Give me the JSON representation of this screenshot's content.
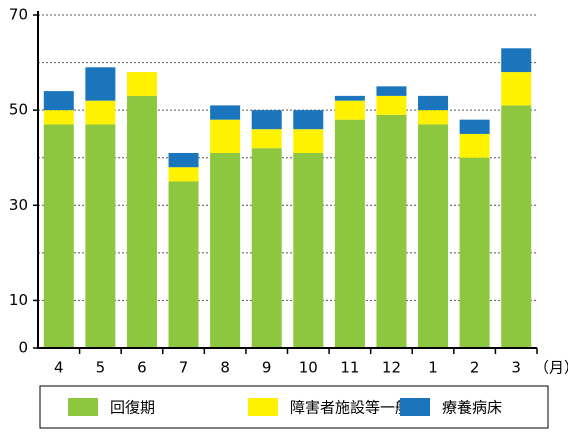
{
  "chart_data": {
    "type": "bar",
    "stacked": true,
    "categories": [
      "4",
      "5",
      "6",
      "7",
      "8",
      "9",
      "10",
      "11",
      "12",
      "1",
      "2",
      "3"
    ],
    "x_unit": "（月）",
    "series": [
      {
        "name": "回復期",
        "color": "#8dc63f",
        "values": [
          47,
          47,
          53,
          35,
          41,
          42,
          41,
          48,
          49,
          47,
          40,
          51
        ]
      },
      {
        "name": "障害者施設等一般",
        "color": "#fff200",
        "values": [
          3,
          5,
          5,
          3,
          7,
          4,
          5,
          4,
          4,
          3,
          5,
          7
        ]
      },
      {
        "name": "療養病床",
        "color": "#1a75bc",
        "values": [
          4,
          7,
          0,
          3,
          3,
          4,
          4,
          1,
          2,
          3,
          3,
          5
        ]
      }
    ],
    "ylim": [
      0,
      70
    ],
    "yticks": [
      0,
      10,
      30,
      50,
      70
    ],
    "yticks_minor": [
      20,
      40,
      60
    ],
    "grid": true,
    "legend": "bottom"
  }
}
